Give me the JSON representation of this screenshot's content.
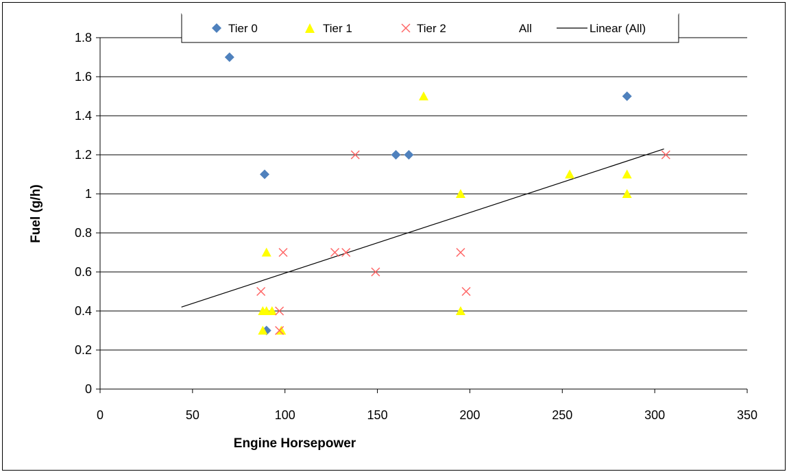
{
  "chart_data": {
    "type": "scatter",
    "title": "",
    "xlabel": "Engine Horsepower",
    "ylabel": "Fuel (g/h)",
    "xlim": [
      0,
      350
    ],
    "ylim": [
      0,
      1.8
    ],
    "x_ticks": [
      "0",
      "50",
      "100",
      "150",
      "200",
      "250",
      "300",
      "350"
    ],
    "y_ticks": [
      "0",
      "0.2",
      "0.4",
      "0.6",
      "0.8",
      "1",
      "1.2",
      "1.4",
      "1.6",
      "1.8"
    ],
    "grid": "horizontal",
    "legend_position": "top",
    "legend": [
      "Tier 0",
      "Tier 1",
      "Tier 2",
      "All",
      "Linear (All)"
    ],
    "series": [
      {
        "name": "Tier 0",
        "marker": "diamond",
        "color": "#4F81BD",
        "points": [
          [
            70,
            1.7
          ],
          [
            89,
            1.1
          ],
          [
            90,
            0.3
          ],
          [
            160,
            1.2
          ],
          [
            167,
            1.2
          ],
          [
            285,
            1.5
          ]
        ]
      },
      {
        "name": "Tier 1",
        "marker": "triangle",
        "color": "#FFFF00",
        "points": [
          [
            88,
            0.3
          ],
          [
            88,
            0.4
          ],
          [
            90,
            0.4
          ],
          [
            93,
            0.4
          ],
          [
            98,
            0.3
          ],
          [
            90,
            0.7
          ],
          [
            175,
            1.5
          ],
          [
            195,
            1.0
          ],
          [
            195,
            0.4
          ],
          [
            254,
            1.1
          ],
          [
            285,
            1.1
          ],
          [
            285,
            1.0
          ]
        ]
      },
      {
        "name": "Tier 2",
        "marker": "x",
        "color": "#FF6666",
        "points": [
          [
            87,
            0.5
          ],
          [
            97,
            0.4
          ],
          [
            97,
            0.3
          ],
          [
            99,
            0.7
          ],
          [
            127,
            0.7
          ],
          [
            133,
            0.7
          ],
          [
            138,
            1.2
          ],
          [
            149,
            0.6
          ],
          [
            195,
            0.7
          ],
          [
            198,
            0.5
          ],
          [
            306,
            1.2
          ]
        ]
      }
    ],
    "trendline": {
      "name": "Linear (All)",
      "color": "#000000",
      "points": [
        [
          44,
          0.42
        ],
        [
          305,
          1.23
        ]
      ]
    }
  }
}
